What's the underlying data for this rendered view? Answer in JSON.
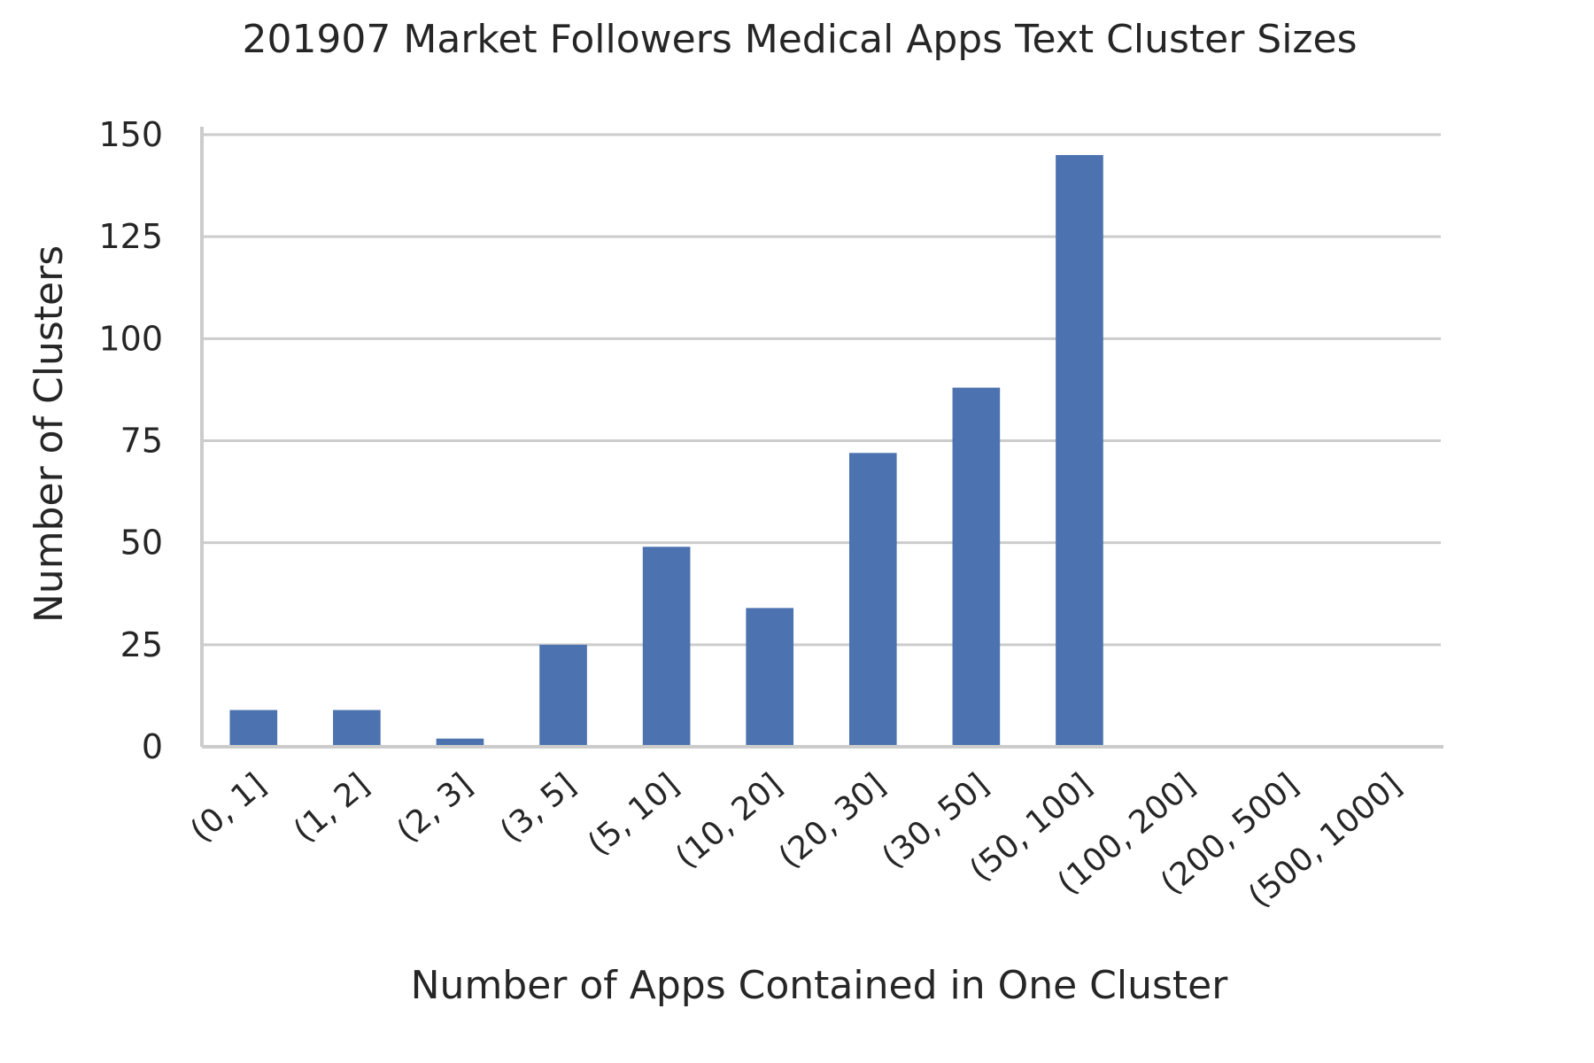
{
  "chart_data": {
    "type": "bar",
    "title": "201907 Market Followers Medical Apps Text Cluster Sizes",
    "xlabel": "Number of Apps Contained in One Cluster",
    "ylabel": "Number of Clusters",
    "categories": [
      "(0, 1]",
      "(1, 2]",
      "(2, 3]",
      "(3, 5]",
      "(5, 10]",
      "(10, 20]",
      "(20, 30]",
      "(30, 50]",
      "(50, 100]",
      "(100, 200]",
      "(200, 500]",
      "(500, 1000]"
    ],
    "values": [
      9,
      9,
      2,
      25,
      49,
      34,
      72,
      88,
      145,
      0,
      0,
      0
    ],
    "yticks": [
      0,
      25,
      50,
      75,
      100,
      125,
      150
    ],
    "ylim": [
      0,
      150
    ],
    "grid": true,
    "bar_color": "#4c72b0",
    "grid_color": "#cccccc",
    "axis_color": "#cccccc"
  }
}
